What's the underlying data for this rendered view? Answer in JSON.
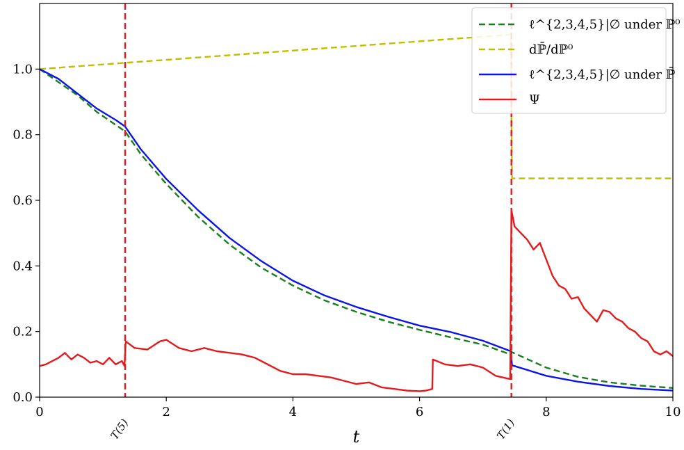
{
  "chart_data": {
    "type": "line",
    "xlabel": "t",
    "ylabel": "",
    "xlim": [
      0,
      10
    ],
    "ylim": [
      0,
      1.2
    ],
    "xticks": [
      0,
      2,
      4,
      6,
      8,
      10
    ],
    "yticks": [
      0.0,
      0.2,
      0.4,
      0.6,
      0.8,
      1.0
    ],
    "xtick_labels": [
      "0",
      "2",
      "4",
      "6",
      "8",
      "10"
    ],
    "ytick_labels": [
      "0.0",
      "0.2",
      "0.4",
      "0.6",
      "0.8",
      "1.0"
    ],
    "grid": false,
    "legend_position": "top-right",
    "events": [
      {
        "x": 1.35,
        "label": "T(5)",
        "color": "#e41a1c"
      },
      {
        "x": 7.45,
        "label": "T(1)",
        "color": "#e41a1c"
      }
    ],
    "series": [
      {
        "name": "ℓ^{2,3,4,5}|∅ under ℙ⁰",
        "color": "#1a7f1a",
        "style": "dashed",
        "x": [
          0,
          0.3,
          0.6,
          0.9,
          1.2,
          1.35,
          1.6,
          2.0,
          2.5,
          3.0,
          3.5,
          4.0,
          4.5,
          5.0,
          5.5,
          6.0,
          6.5,
          7.0,
          7.44,
          7.46,
          8.0,
          8.5,
          9.0,
          9.5,
          10.0
        ],
        "y": [
          1.0,
          0.96,
          0.92,
          0.87,
          0.83,
          0.81,
          0.74,
          0.65,
          0.55,
          0.465,
          0.395,
          0.34,
          0.295,
          0.26,
          0.23,
          0.205,
          0.182,
          0.16,
          0.13,
          0.137,
          0.09,
          0.062,
          0.045,
          0.035,
          0.028
        ]
      },
      {
        "name": "dℙ̄/dℙ⁰",
        "color": "#bfbf00",
        "style": "dashed",
        "x": [
          0,
          7.44,
          7.46,
          10.0
        ],
        "y": [
          1.0,
          1.105,
          0.667,
          0.667
        ]
      },
      {
        "name": "ℓ^{2,3,4,5}|∅ under ℙ̄",
        "color": "#0a14e6",
        "style": "solid",
        "x": [
          0,
          0.3,
          0.6,
          0.9,
          1.2,
          1.35,
          1.6,
          2.0,
          2.5,
          3.0,
          3.5,
          4.0,
          4.5,
          5.0,
          5.5,
          6.0,
          6.5,
          7.0,
          7.44,
          7.46,
          8.0,
          8.5,
          9.0,
          9.5,
          10.0
        ],
        "y": [
          1.0,
          0.97,
          0.925,
          0.88,
          0.845,
          0.825,
          0.755,
          0.665,
          0.57,
          0.485,
          0.415,
          0.355,
          0.31,
          0.275,
          0.245,
          0.218,
          0.198,
          0.172,
          0.14,
          0.097,
          0.065,
          0.047,
          0.034,
          0.025,
          0.02
        ]
      },
      {
        "name": "Ψ",
        "color": "#e41a1c",
        "style": "solid",
        "x": [
          0,
          0.1,
          0.2,
          0.3,
          0.4,
          0.5,
          0.6,
          0.7,
          0.8,
          0.9,
          1.0,
          1.1,
          1.2,
          1.3,
          1.34,
          1.36,
          1.5,
          1.7,
          1.9,
          2.0,
          2.2,
          2.4,
          2.6,
          2.8,
          3.0,
          3.2,
          3.4,
          3.6,
          3.8,
          4.0,
          4.2,
          4.4,
          4.6,
          4.8,
          5.0,
          5.2,
          5.4,
          5.6,
          5.8,
          6.0,
          6.1,
          6.2,
          6.21,
          6.4,
          6.6,
          6.8,
          7.0,
          7.2,
          7.43,
          7.45,
          7.5,
          7.6,
          7.7,
          7.8,
          7.9,
          8.0,
          8.1,
          8.2,
          8.3,
          8.4,
          8.5,
          8.6,
          8.7,
          8.8,
          8.9,
          9.0,
          9.1,
          9.2,
          9.3,
          9.4,
          9.5,
          9.6,
          9.7,
          9.8,
          9.9,
          10.0
        ],
        "y": [
          0.095,
          0.1,
          0.11,
          0.12,
          0.135,
          0.115,
          0.13,
          0.12,
          0.105,
          0.11,
          0.1,
          0.12,
          0.1,
          0.11,
          0.095,
          0.17,
          0.15,
          0.145,
          0.17,
          0.175,
          0.15,
          0.14,
          0.15,
          0.14,
          0.135,
          0.13,
          0.12,
          0.1,
          0.08,
          0.07,
          0.07,
          0.065,
          0.06,
          0.05,
          0.04,
          0.045,
          0.03,
          0.025,
          0.02,
          0.018,
          0.02,
          0.025,
          0.115,
          0.1,
          0.095,
          0.1,
          0.09,
          0.065,
          0.055,
          0.57,
          0.52,
          0.5,
          0.48,
          0.45,
          0.47,
          0.42,
          0.37,
          0.34,
          0.33,
          0.3,
          0.305,
          0.27,
          0.25,
          0.23,
          0.265,
          0.26,
          0.24,
          0.23,
          0.21,
          0.2,
          0.18,
          0.17,
          0.14,
          0.13,
          0.14,
          0.125
        ]
      }
    ]
  }
}
